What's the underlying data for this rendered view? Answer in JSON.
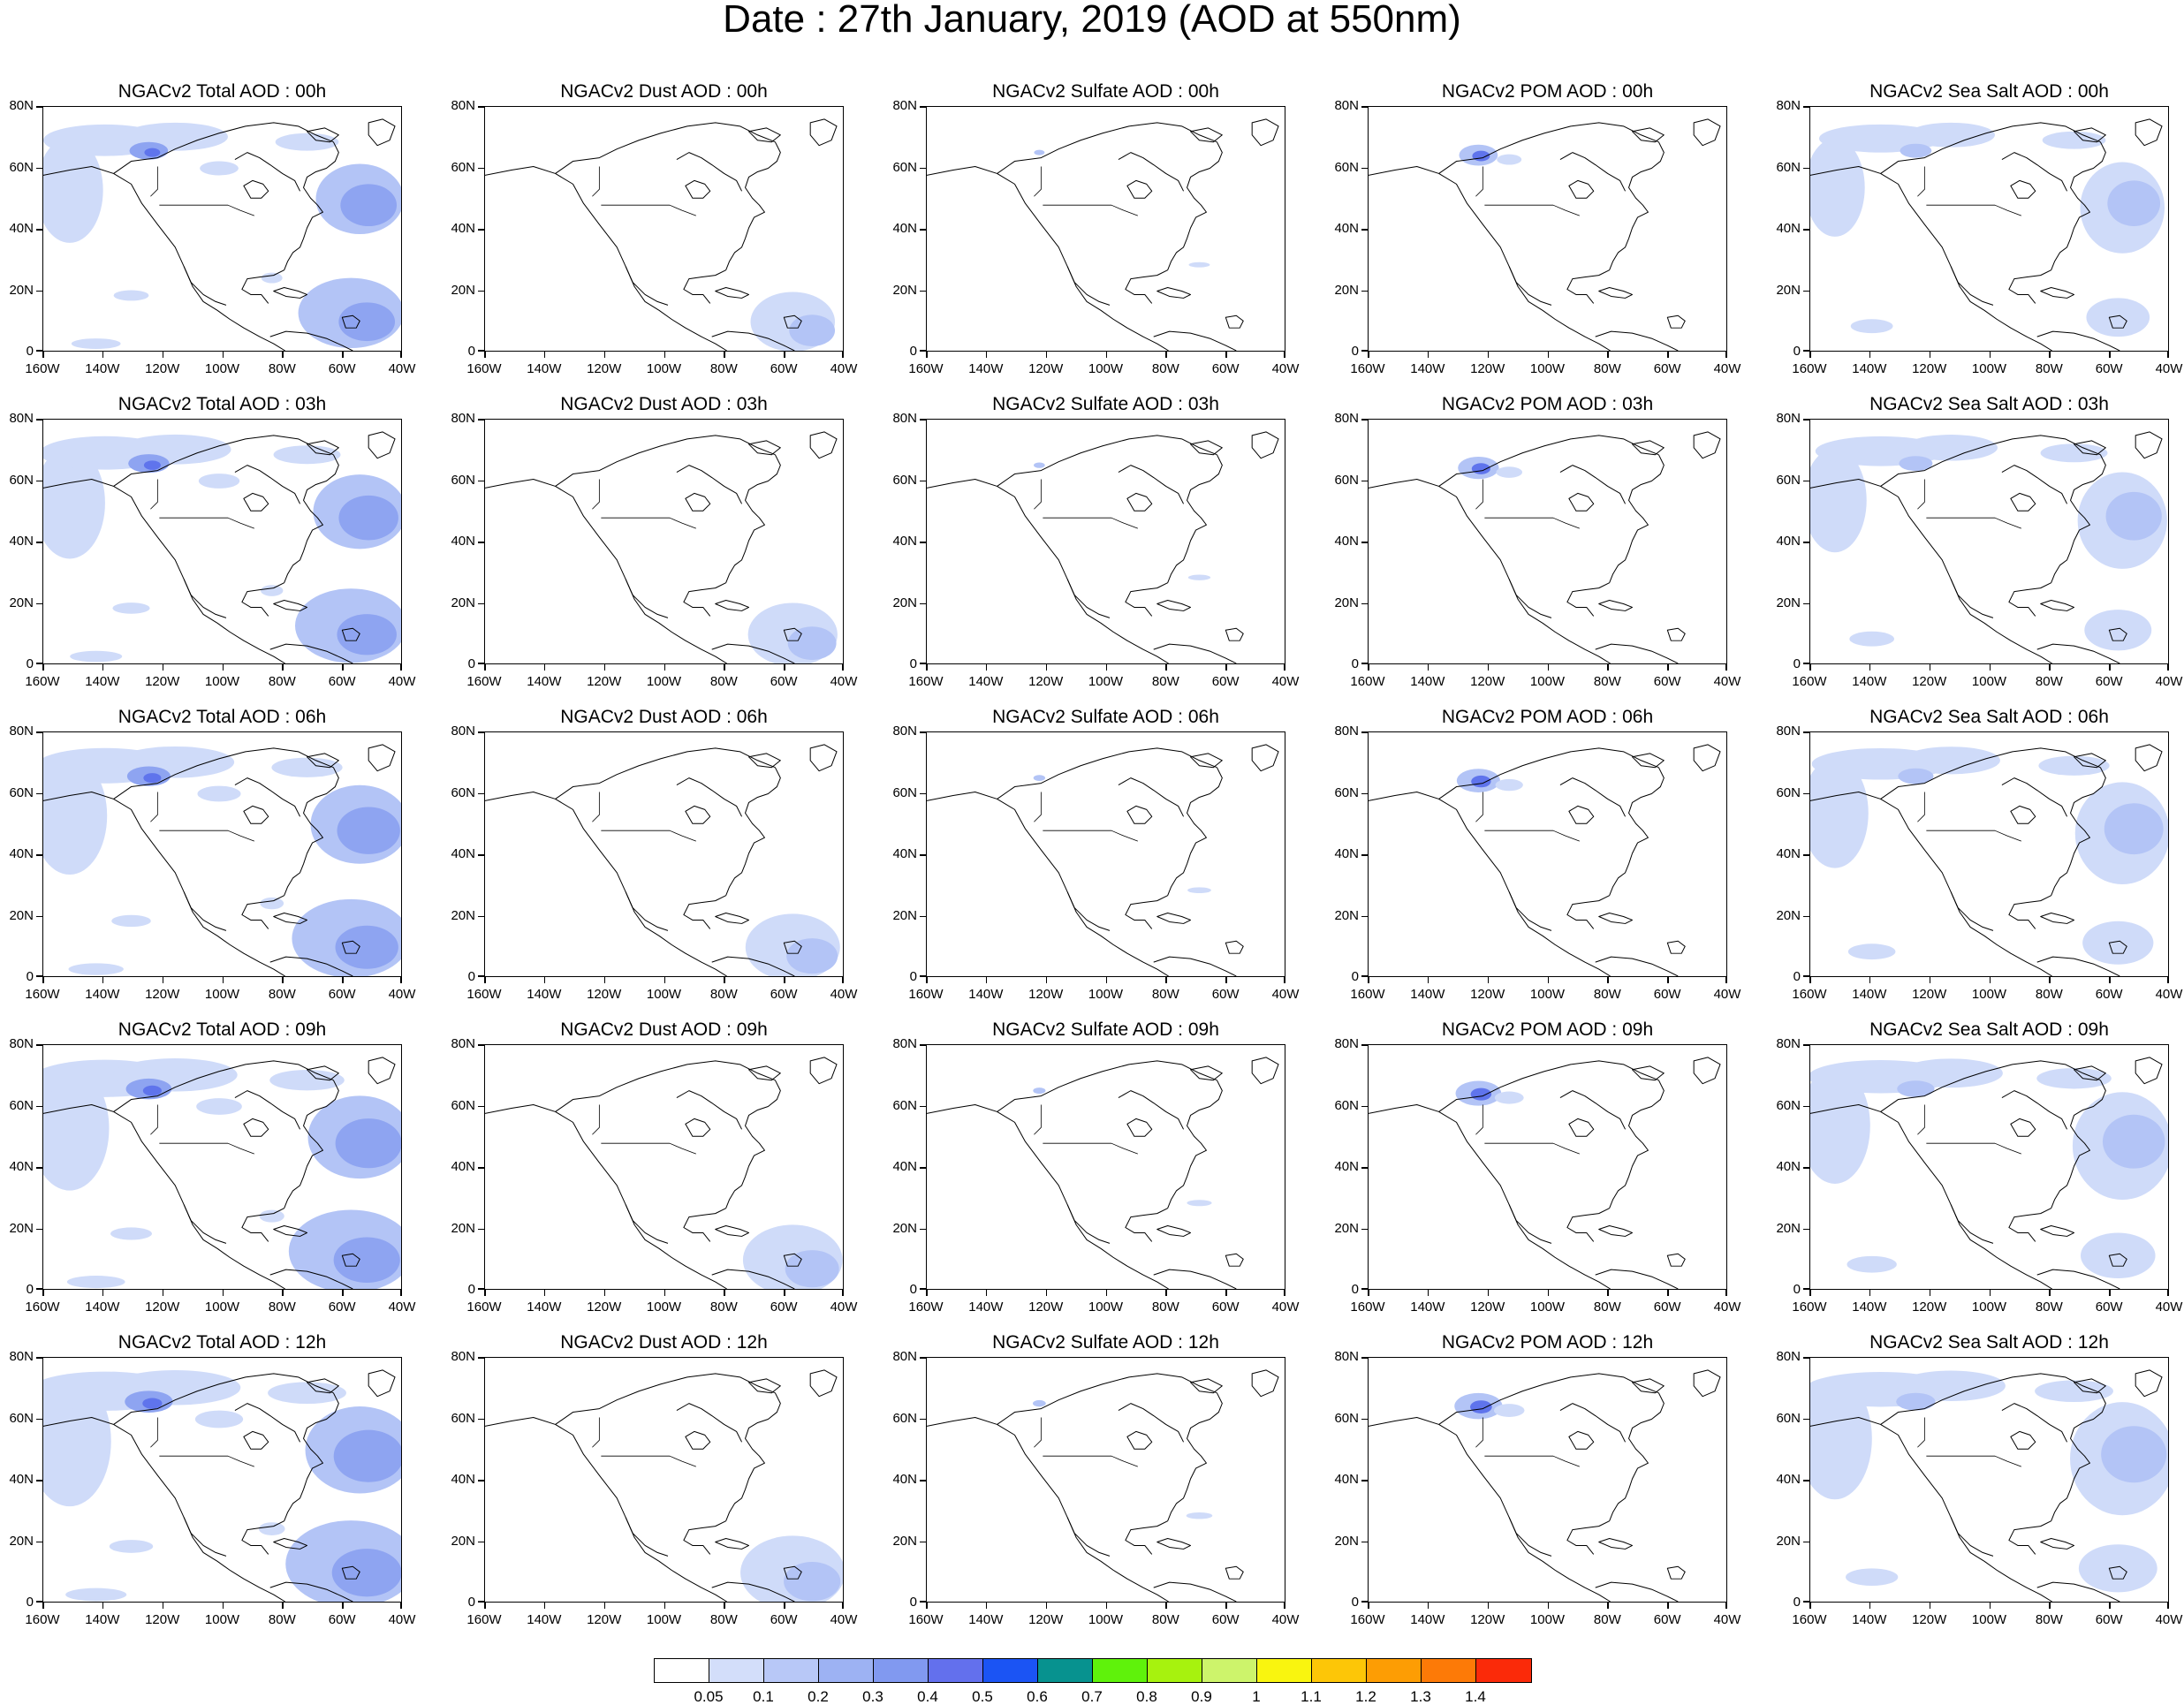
{
  "title": "Date : 27th January, 2019 (AOD at 550nm)",
  "panels": [
    {
      "title": "NGACv2 Total AOD : 00h",
      "field": "total"
    },
    {
      "title": "NGACv2 Dust AOD : 00h",
      "field": "dust"
    },
    {
      "title": "NGACv2 Sulfate AOD : 00h",
      "field": "sulfate"
    },
    {
      "title": "NGACv2 POM AOD : 00h",
      "field": "pom"
    },
    {
      "title": "NGACv2 Sea Salt AOD : 00h",
      "field": "seasalt"
    },
    {
      "title": "NGACv2 Total AOD : 03h",
      "field": "total"
    },
    {
      "title": "NGACv2 Dust AOD : 03h",
      "field": "dust"
    },
    {
      "title": "NGACv2 Sulfate AOD : 03h",
      "field": "sulfate"
    },
    {
      "title": "NGACv2 POM AOD : 03h",
      "field": "pom"
    },
    {
      "title": "NGACv2 Sea Salt AOD : 03h",
      "field": "seasalt"
    },
    {
      "title": "NGACv2 Total AOD : 06h",
      "field": "total"
    },
    {
      "title": "NGACv2 Dust AOD : 06h",
      "field": "dust"
    },
    {
      "title": "NGACv2 Sulfate AOD : 06h",
      "field": "sulfate"
    },
    {
      "title": "NGACv2 POM AOD : 06h",
      "field": "pom"
    },
    {
      "title": "NGACv2 Sea Salt AOD : 06h",
      "field": "seasalt"
    },
    {
      "title": "NGACv2 Total AOD : 09h",
      "field": "total"
    },
    {
      "title": "NGACv2 Dust AOD : 09h",
      "field": "dust"
    },
    {
      "title": "NGACv2 Sulfate AOD : 09h",
      "field": "sulfate"
    },
    {
      "title": "NGACv2 POM AOD : 09h",
      "field": "pom"
    },
    {
      "title": "NGACv2 Sea Salt  AOD : 09h",
      "field": "seasalt"
    },
    {
      "title": "NGACv2 Total AOD  : 12h",
      "field": "total"
    },
    {
      "title": "NGACv2 Dust AOD : 12h",
      "field": "dust"
    },
    {
      "title": "NGACv2 Sulfate AOD : 12h",
      "field": "sulfate"
    },
    {
      "title": "NGACv2 POM  AOD : 12h",
      "field": "pom"
    },
    {
      "title": "NGACv2 Sea Salt  AOD : 12h",
      "field": "seasalt"
    }
  ],
  "y_axis_labels": [
    "80N",
    "60N",
    "40N",
    "20N",
    "0"
  ],
  "x_axis_labels": [
    "160W",
    "140W",
    "120W",
    "100W",
    "80W",
    "60W",
    "40W"
  ],
  "colorbar": {
    "labels": [
      "0.05",
      "0.1",
      "0.2",
      "0.3",
      "0.4",
      "0.5",
      "0.6",
      "0.7",
      "0.8",
      "0.9",
      "1",
      "1.1",
      "1.2",
      "1.3",
      "1.4"
    ],
    "colors": [
      "#ffffff",
      "#d3defa",
      "#b8c8f7",
      "#9db2f3",
      "#8199f0",
      "#6370ed",
      "#1b54f4",
      "#07928f",
      "#5ff20b",
      "#a7f20e",
      "#cdf46b",
      "#f9f50f",
      "#fdc607",
      "#fd9d04",
      "#fd7a07",
      "#fb2a09"
    ]
  },
  "fill_colors": {
    "light": "#cfdbf9",
    "mid": "#b3c4f6",
    "dark": "#8ea4f1",
    "deep": "#5f74ec",
    "core": "#07928f"
  }
}
